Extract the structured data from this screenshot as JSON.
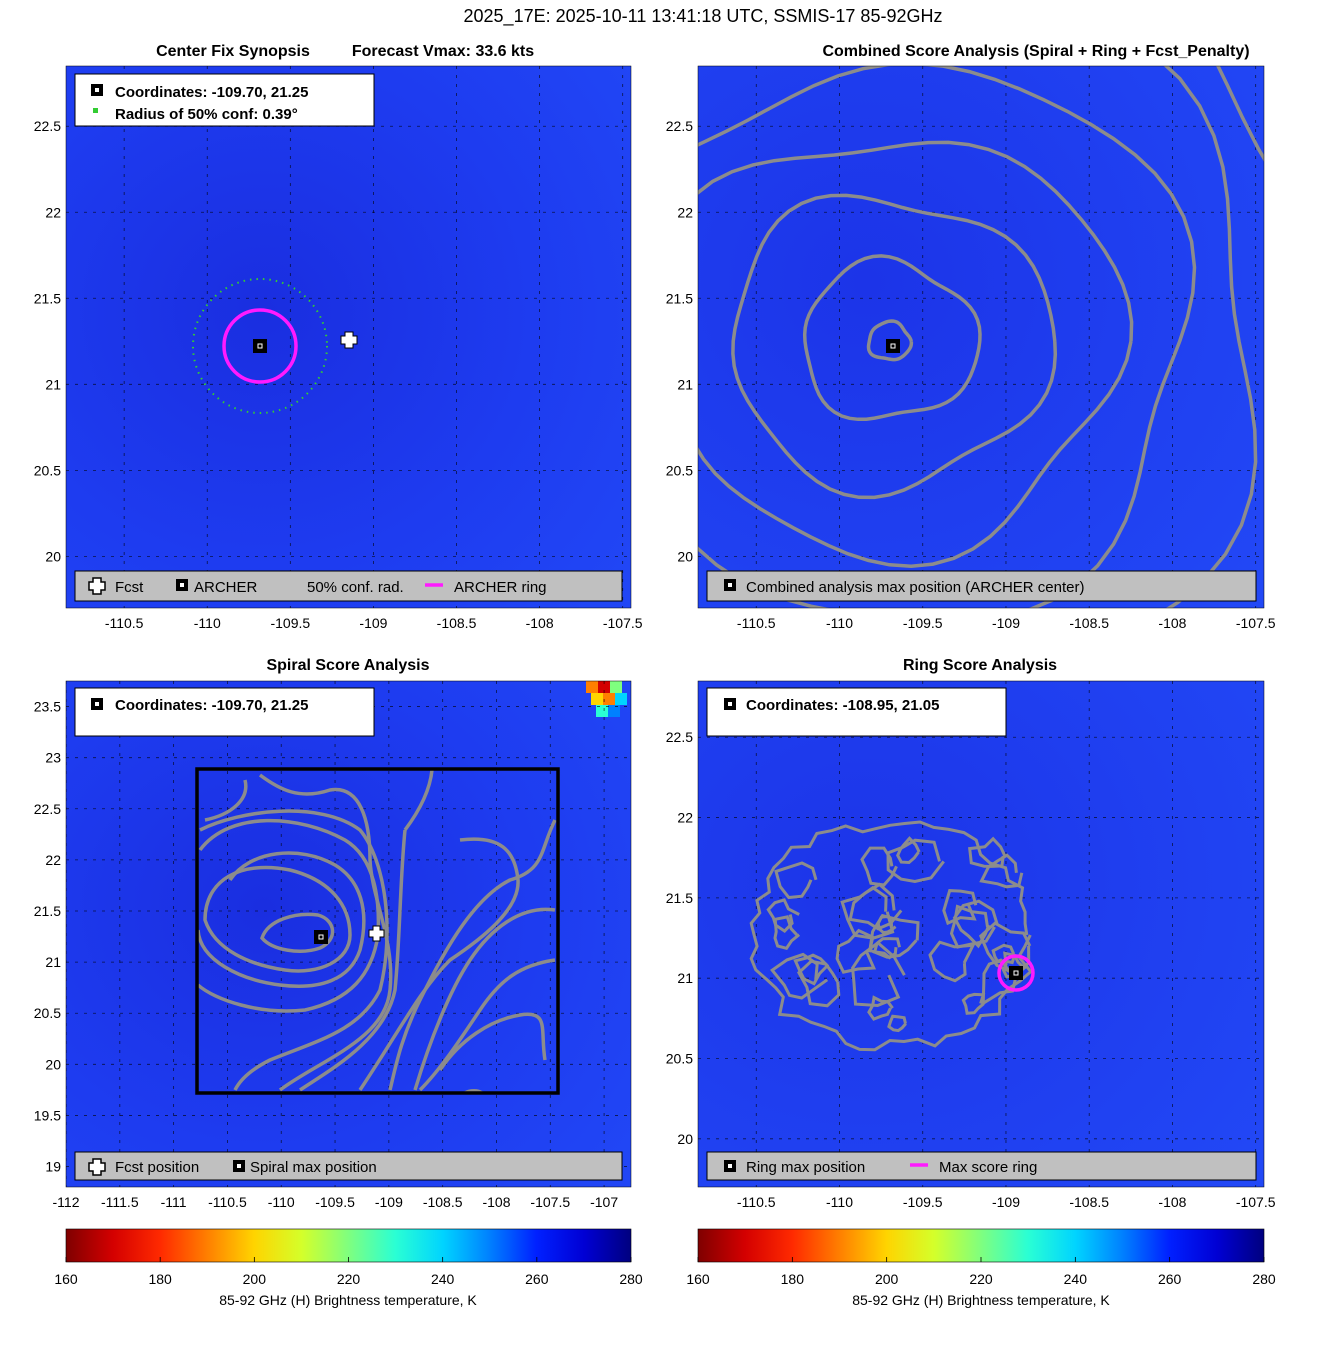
{
  "figure_title": "2025_17E: 2025-10-11 13:41:18 UTC, SSMIS-17 85-92GHz",
  "colors": {
    "background_field": "#1f3cf2",
    "contour": "#8c8c8c",
    "archer_ring": "#ff1aff",
    "conf_radius": "#33cc33",
    "legend_box": "#c0c0c0",
    "grid": "#000000"
  },
  "colormap": [
    "#7f0000",
    "#d40000",
    "#ff2a00",
    "#ff7f00",
    "#ffd400",
    "#d4ff2a",
    "#7fff7f",
    "#2affd4",
    "#00d4ff",
    "#0080ff",
    "#0020ff",
    "#0000d4",
    "#00007f"
  ],
  "panels": {
    "synopsis": {
      "title_left": "Center Fix Synopsis",
      "title_right": "Forecast Vmax: 33.6 kts",
      "info_line1": "Coordinates: -109.70, 21.25",
      "info_line2": "Radius of 50% conf: 0.39°",
      "legend": {
        "fcst": "Fcst",
        "archer": "ARCHER",
        "conf": "50% conf. rad.",
        "ring": "ARCHER ring"
      },
      "xticks": [
        "-110.5",
        "-110",
        "-109.5",
        "-109",
        "-108.5",
        "-108",
        "-107.5"
      ],
      "yticks": [
        "20",
        "20.5",
        "21",
        "21.5",
        "22",
        "22.5"
      ]
    },
    "combined": {
      "title": "Combined Score Analysis (Spiral + Ring + Fcst_Penalty)",
      "legend": {
        "max": "Combined analysis max position (ARCHER center)"
      },
      "xticks": [
        "-110.5",
        "-110",
        "-109.5",
        "-109",
        "-108.5",
        "-108",
        "-107.5"
      ],
      "yticks": [
        "20",
        "20.5",
        "21",
        "21.5",
        "22",
        "22.5"
      ]
    },
    "spiral": {
      "title": "Spiral Score Analysis",
      "info_line1": "Coordinates: -109.70, 21.25",
      "legend": {
        "fcst": "Fcst position",
        "max": "Spiral max position"
      },
      "xticks": [
        "-112",
        "-111.5",
        "-111",
        "-110.5",
        "-110",
        "-109.5",
        "-109",
        "-108.5",
        "-108",
        "-107.5",
        "-107"
      ],
      "yticks": [
        "19",
        "19.5",
        "20",
        "20.5",
        "21",
        "21.5",
        "22",
        "22.5",
        "23",
        "23.5"
      ]
    },
    "ring": {
      "title": "Ring Score Analysis",
      "info_line1": "Coordinates: -108.95, 21.05",
      "legend": {
        "max": "Ring max position",
        "ring": "Max score ring"
      },
      "xticks": [
        "-110.5",
        "-110",
        "-109.5",
        "-109",
        "-108.5",
        "-108",
        "-107.5"
      ],
      "yticks": [
        "20",
        "20.5",
        "21",
        "21.5",
        "22",
        "22.5"
      ]
    }
  },
  "colorbars": {
    "left": {
      "ticks": [
        "160",
        "180",
        "200",
        "220",
        "240",
        "260",
        "280"
      ],
      "label": "85-92 GHz (H) Brightness temperature, K"
    },
    "right": {
      "ticks": [
        "160",
        "180",
        "200",
        "220",
        "240",
        "260",
        "280"
      ],
      "label": "85-92 GHz (H) Brightness temperature, K"
    }
  },
  "chart_data": [
    {
      "type": "heatmap",
      "title": "Center Fix Synopsis",
      "subtitle": "Forecast Vmax: 33.6 kts",
      "xlim": [
        -110.85,
        -107.45
      ],
      "ylim": [
        19.7,
        22.85
      ],
      "points": [
        {
          "name": "Fcst",
          "lon": -109.17,
          "lat": 21.3
        },
        {
          "name": "ARCHER",
          "lon": -109.7,
          "lat": 21.25
        }
      ],
      "archer_ring_radius_deg": 0.21,
      "conf_radius_deg": 0.39,
      "grid": true
    },
    {
      "type": "heatmap",
      "title": "Combined Score Analysis (Spiral + Ring + Fcst_Penalty)",
      "xlim": [
        -110.85,
        -107.45
      ],
      "ylim": [
        19.7,
        22.85
      ],
      "max_position": {
        "lon": -109.7,
        "lat": 21.25
      },
      "contour_center": {
        "lon": -109.7,
        "lat": 21.25
      },
      "contour_radii_deg": [
        0.12,
        0.5,
        0.92,
        1.32,
        1.75,
        2.2,
        2.7
      ],
      "grid": true
    },
    {
      "type": "heatmap",
      "title": "Spiral Score Analysis",
      "xlim": [
        -112.0,
        -106.75
      ],
      "ylim": [
        18.8,
        23.75
      ],
      "max_position": {
        "lon": -109.7,
        "lat": 21.25
      },
      "fcst_position": {
        "lon": -109.17,
        "lat": 21.3
      },
      "search_box": {
        "lon_min": -110.8,
        "lon_max": -107.55,
        "lat_min": 19.7,
        "lat_max": 22.9
      },
      "grid": true
    },
    {
      "type": "heatmap",
      "title": "Ring Score Analysis",
      "xlim": [
        -110.85,
        -107.45
      ],
      "ylim": [
        19.7,
        22.85
      ],
      "max_position": {
        "lon": -108.95,
        "lat": 21.05
      },
      "max_score_ring_radius_deg": 0.1,
      "grid": true
    }
  ]
}
